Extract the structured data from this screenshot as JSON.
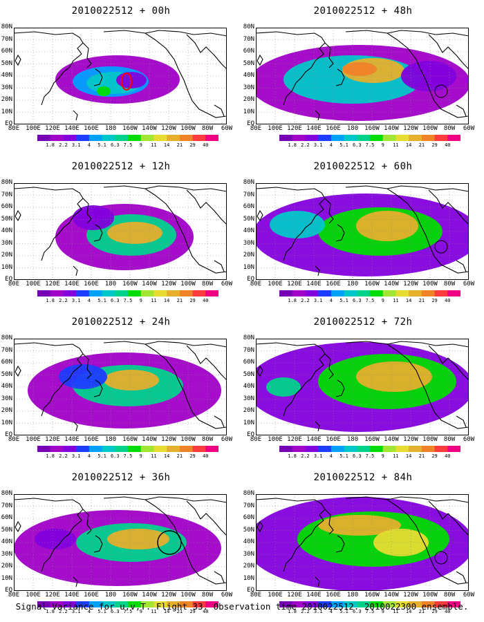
{
  "panels": [
    {
      "title": "2010022512 + 00h"
    },
    {
      "title": "2010022512 + 48h"
    },
    {
      "title": "2010022512 + 12h"
    },
    {
      "title": "2010022512 + 60h"
    },
    {
      "title": "2010022512 + 24h"
    },
    {
      "title": "2010022512 + 72h"
    },
    {
      "title": "2010022512 + 36h"
    },
    {
      "title": "2010022512 + 84h"
    }
  ],
  "lat_labels": [
    "80N",
    "70N",
    "60N",
    "50N",
    "40N",
    "30N",
    "20N",
    "10N",
    "EQ"
  ],
  "lon_labels": [
    "80E",
    "100E",
    "120E",
    "140E",
    "160E",
    "180",
    "160W",
    "140W",
    "120W",
    "100W",
    "80W",
    "60W"
  ],
  "colorbar": {
    "labels": [
      "1.8",
      "2.2",
      "3.1",
      "4",
      "5.1",
      "6.3",
      "7.5",
      "9",
      "11",
      "14",
      "21",
      "29",
      "40"
    ],
    "colors": [
      "#a000c8",
      "#8200dc",
      "#1e3cff",
      "#00a0ff",
      "#00c8c8",
      "#00d28c",
      "#00dc00",
      "#a0e632",
      "#e6dc32",
      "#e6af2d",
      "#f08228",
      "#fa3c3c",
      "#f00082"
    ]
  },
  "caption": "Signal Variance for u,v,T. Flight 33. Observation time 2010022512. 2010022300 ensemble."
}
